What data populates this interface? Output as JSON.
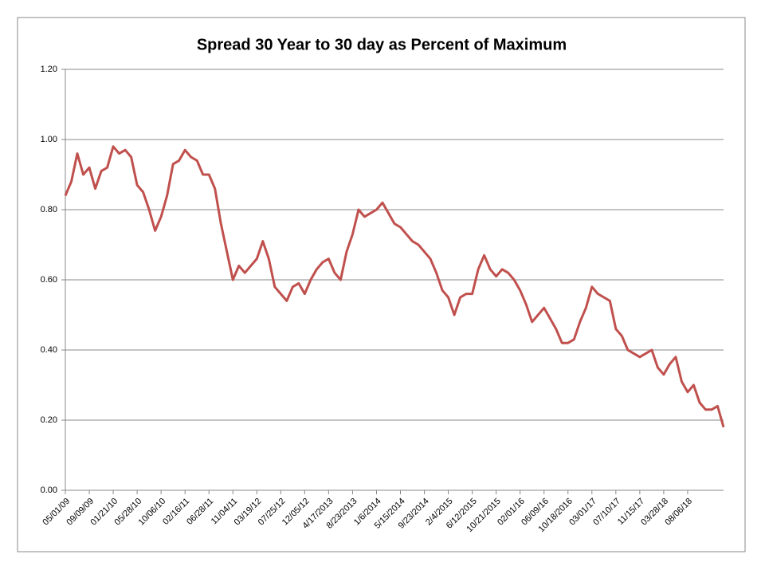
{
  "chart_data": {
    "type": "line",
    "title": "Spread 30 Year to 30 day as Percent of Maximum",
    "categories": [
      "05/01/09",
      null,
      null,
      null,
      "09/09/09",
      null,
      null,
      null,
      "01/21/10",
      null,
      null,
      null,
      "05/28/10",
      null,
      null,
      null,
      "10/06/10",
      null,
      null,
      null,
      "02/16/11",
      null,
      null,
      null,
      "06/28/11",
      null,
      null,
      null,
      "11/04/11",
      null,
      null,
      null,
      "03/19/12",
      null,
      null,
      null,
      "07/25/12",
      null,
      null,
      null,
      "12/05/12",
      null,
      null,
      null,
      "4/17/2013",
      null,
      null,
      null,
      "8/23/2013",
      null,
      null,
      null,
      "1/6/2014",
      null,
      null,
      null,
      "5/15/2014",
      null,
      null,
      null,
      "9/23/2014",
      null,
      null,
      null,
      "2/4/2015",
      null,
      null,
      null,
      "6/12/2015",
      null,
      null,
      null,
      "10/21/2015",
      null,
      null,
      null,
      "02/01/16",
      null,
      null,
      null,
      "06/09/16",
      null,
      null,
      null,
      "10/18/2016",
      null,
      null,
      null,
      "03/01/17",
      null,
      null,
      null,
      "07/10/17",
      null,
      null,
      null,
      "11/15/17",
      null,
      null,
      null,
      "03/28/18",
      null,
      null,
      null,
      "08/06/18",
      null,
      null,
      null,
      null,
      null,
      null
    ],
    "series": [
      {
        "color": "#c0504d",
        "values": [
          0.84,
          0.88,
          0.96,
          0.9,
          0.92,
          0.86,
          0.91,
          0.92,
          0.98,
          0.96,
          0.97,
          0.95,
          0.87,
          0.85,
          0.8,
          0.74,
          0.78,
          0.84,
          0.93,
          0.94,
          0.97,
          0.95,
          0.94,
          0.9,
          0.9,
          0.86,
          0.76,
          0.68,
          0.6,
          0.64,
          0.62,
          0.64,
          0.66,
          0.71,
          0.66,
          0.58,
          0.56,
          0.54,
          0.58,
          0.59,
          0.56,
          0.6,
          0.63,
          0.65,
          0.66,
          0.62,
          0.6,
          0.68,
          0.73,
          0.8,
          0.78,
          0.79,
          0.8,
          0.82,
          0.79,
          0.76,
          0.75,
          0.73,
          0.71,
          0.7,
          0.68,
          0.66,
          0.62,
          0.57,
          0.55,
          0.5,
          0.55,
          0.56,
          0.56,
          0.63,
          0.67,
          0.63,
          0.61,
          0.63,
          0.62,
          0.6,
          0.57,
          0.53,
          0.48,
          0.5,
          0.52,
          0.49,
          0.46,
          0.42,
          0.42,
          0.43,
          0.48,
          0.52,
          0.58,
          0.56,
          0.55,
          0.54,
          0.46,
          0.44,
          0.4,
          0.39,
          0.38,
          0.39,
          0.4,
          0.35,
          0.33,
          0.36,
          0.38,
          0.31,
          0.28,
          0.3,
          0.25,
          0.23,
          0.23,
          0.24,
          0.18
        ]
      }
    ],
    "ylim": [
      0,
      1.2
    ],
    "yticks": [
      {
        "value": 0,
        "label": "0.00"
      },
      {
        "value": 0.2,
        "label": "0.20"
      },
      {
        "value": 0.4,
        "label": "0.40"
      },
      {
        "value": 0.6,
        "label": "0.60"
      },
      {
        "value": 0.8,
        "label": "0.80"
      },
      {
        "value": 1,
        "label": "1.00"
      },
      {
        "value": 1.2,
        "label": "1.20"
      }
    ],
    "grid": true
  }
}
